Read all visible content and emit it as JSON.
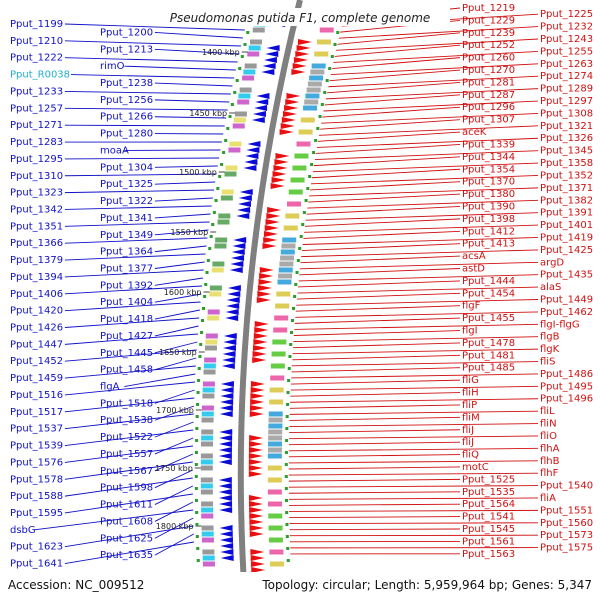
{
  "title": "Pseudomonas putida F1, complete genome",
  "footer": {
    "accession": "Accession: NC_009512",
    "topology": "Topology: circular; Length: 5,959,964 bp; Genes: 5,347"
  },
  "colors": {
    "left_label": "#1010c8",
    "right_label": "#d01010",
    "rna_label": "#20b0d0",
    "left_genes": "#0a0ad8",
    "right_genes": "#e81010",
    "backbone": "#808080",
    "tick_dot": "#2a9d2a"
  },
  "ticks": [
    {
      "label": "1400 kbp"
    },
    {
      "label": "1450 kbp"
    },
    {
      "label": "1500 kbp"
    },
    {
      "label": "1550 kbp"
    },
    {
      "label": "1600 kbp"
    },
    {
      "label": "1650 kbp"
    },
    {
      "label": "1700 kbp"
    },
    {
      "label": "1750 kbp"
    },
    {
      "label": "1800 kbp"
    },
    {
      "label": "50 kbp"
    }
  ],
  "left_labels": [
    "Pput_1199",
    "Pput_1200",
    "Pput_1210",
    "Pput_1213",
    "Pput_1222",
    "rimO",
    "Pput_R0038",
    "Pput_1238",
    "Pput_1233",
    "Pput_1256",
    "Pput_1257",
    "Pput_1266",
    "Pput_1271",
    "Pput_1280",
    "Pput_1283",
    "moaA",
    "Pput_1295",
    "Pput_1304",
    "Pput_1310",
    "Pput_1325",
    "Pput_1323",
    "Pput_1322",
    "Pput_1342",
    "Pput_1341",
    "Pput_1351",
    "Pput_1349",
    "Pput_1366",
    "Pput_1364",
    "Pput_1379",
    "Pput_1377",
    "Pput_1394",
    "Pput_1392",
    "Pput_1406",
    "Pput_1404",
    "Pput_1420",
    "Pput_1418",
    "Pput_1426",
    "Pput_1427",
    "Pput_1447",
    "Pput_1445",
    "Pput_1452",
    "Pput_1458",
    "Pput_1459",
    "flgA",
    "Pput_1516",
    "Pput_1518",
    "Pput_1517",
    "Pput_1538",
    "Pput_1537",
    "Pput_1522",
    "Pput_1539",
    "Pput_1557",
    "Pput_1576",
    "Pput_1567",
    "Pput_1578",
    "Pput_1598",
    "Pput_1588",
    "Pput_1611",
    "Pput_1595",
    "Pput_1608",
    "dsbG",
    "Pput_1625",
    "Pput_1623",
    "Pput_1635",
    "Pput_1641"
  ],
  "right_labels": [
    "Pput_1219",
    "Pput_1225",
    "Pput_1229",
    "Pput_1232",
    "Pput_1239",
    "Pput_1243",
    "Pput_1252",
    "Pput_1255",
    "Pput_1260",
    "Pput_1263",
    "Pput_1270",
    "Pput_1274",
    "Pput_1281",
    "Pput_1289",
    "Pput_1287",
    "Pput_1297",
    "Pput_1296",
    "Pput_1308",
    "Pput_1307",
    "Pput_1321",
    "aceK",
    "Pput_1326",
    "Pput_1339",
    "Pput_1345",
    "Pput_1344",
    "Pput_1358",
    "Pput_1354",
    "Pput_1352",
    "Pput_1370",
    "Pput_1371",
    "Pput_1380",
    "Pput_1382",
    "Pput_1390",
    "Pput_1391",
    "Pput_1398",
    "Pput_1401",
    "Pput_1412",
    "Pput_1419",
    "Pput_1413",
    "Pput_1425",
    "acsA",
    "argD",
    "astD",
    "Pput_1435",
    "Pput_1444",
    "alaS",
    "Pput_1454",
    "Pput_1449",
    "flgF",
    "Pput_1462",
    "Pput_1455",
    "flgI-flgG",
    "flgI",
    "flgB",
    "Pput_1478",
    "flgK",
    "Pput_1481",
    "fliS",
    "Pput_1485",
    "Pput_1486",
    "fliG",
    "Pput_1495",
    "fliH",
    "Pput_1496",
    "fliP",
    "fliL",
    "fliM",
    "fliN",
    "fliJ",
    "fliO",
    "fliJ",
    "flhA",
    "fliQ",
    "flhB",
    "motC",
    "flhF",
    "Pput_1525",
    "Pput_1540",
    "Pput_1535",
    "fliA",
    "Pput_1564",
    "Pput_1551",
    "Pput_1541",
    "Pput_1560",
    "Pput_1545",
    "Pput_1573",
    "Pput_1561",
    "Pput_1575",
    "Pput_1563"
  ]
}
